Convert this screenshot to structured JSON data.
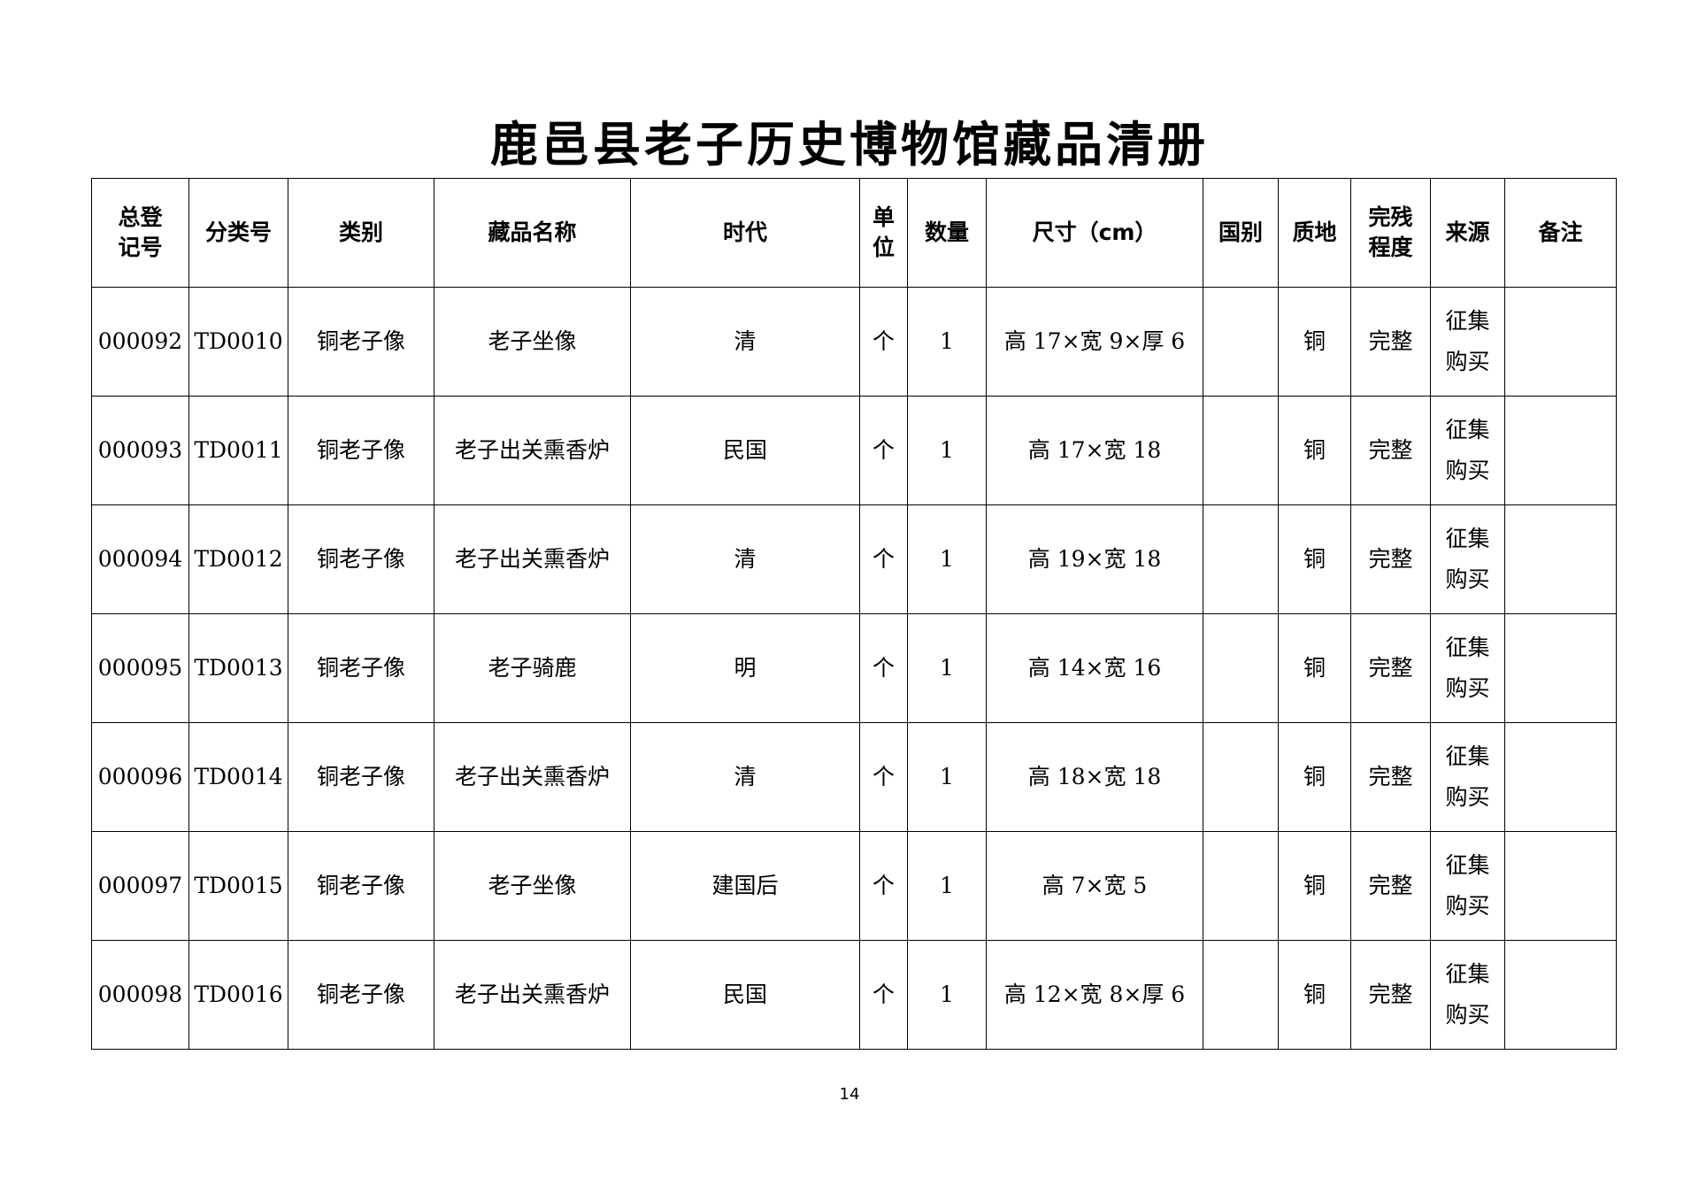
{
  "title": "鹿邑县老子历史博物馆藏品清册",
  "columns": [
    "总登\n记号",
    "分类号",
    "类别",
    "藏品名称",
    "时代",
    "单\n位",
    "数量",
    "尺寸（cm）",
    "国别",
    "质地",
    "完残\n程度",
    "来源",
    "备注"
  ],
  "rows": [
    [
      "000092",
      "TD0010",
      "铜老子像",
      "老子坐像",
      "清",
      "个",
      "1",
      "高 17×宽 9×厚 6",
      "",
      "铜",
      "完整",
      "征集\n购买",
      ""
    ],
    [
      "000093",
      "TD0011",
      "铜老子像",
      "老子出关熏香炉",
      "民国",
      "个",
      "1",
      "高 17×宽 18",
      "",
      "铜",
      "完整",
      "征集\n购买",
      ""
    ],
    [
      "000094",
      "TD0012",
      "铜老子像",
      "老子出关熏香炉",
      "清",
      "个",
      "1",
      "高 19×宽 18",
      "",
      "铜",
      "完整",
      "征集\n购买",
      ""
    ],
    [
      "000095",
      "TD0013",
      "铜老子像",
      "老子骑鹿",
      "明",
      "个",
      "1",
      "高 14×宽 16",
      "",
      "铜",
      "完整",
      "征集\n购买",
      ""
    ],
    [
      "000096",
      "TD0014",
      "铜老子像",
      "老子出关熏香炉",
      "清",
      "个",
      "1",
      "高 18×宽 18",
      "",
      "铜",
      "完整",
      "征集\n购买",
      ""
    ],
    [
      "000097",
      "TD0015",
      "铜老子像",
      "老子坐像",
      "建国后",
      "个",
      "1",
      "高 7×宽 5",
      "",
      "铜",
      "完整",
      "征集\n购买",
      ""
    ],
    [
      "000098",
      "TD0016",
      "铜老子像",
      "老子出关熏香炉",
      "民国",
      "个",
      "1",
      "高 12×宽 8×厚 6",
      "",
      "铜",
      "完整",
      "征集\n购买",
      ""
    ]
  ],
  "page_number": "14"
}
